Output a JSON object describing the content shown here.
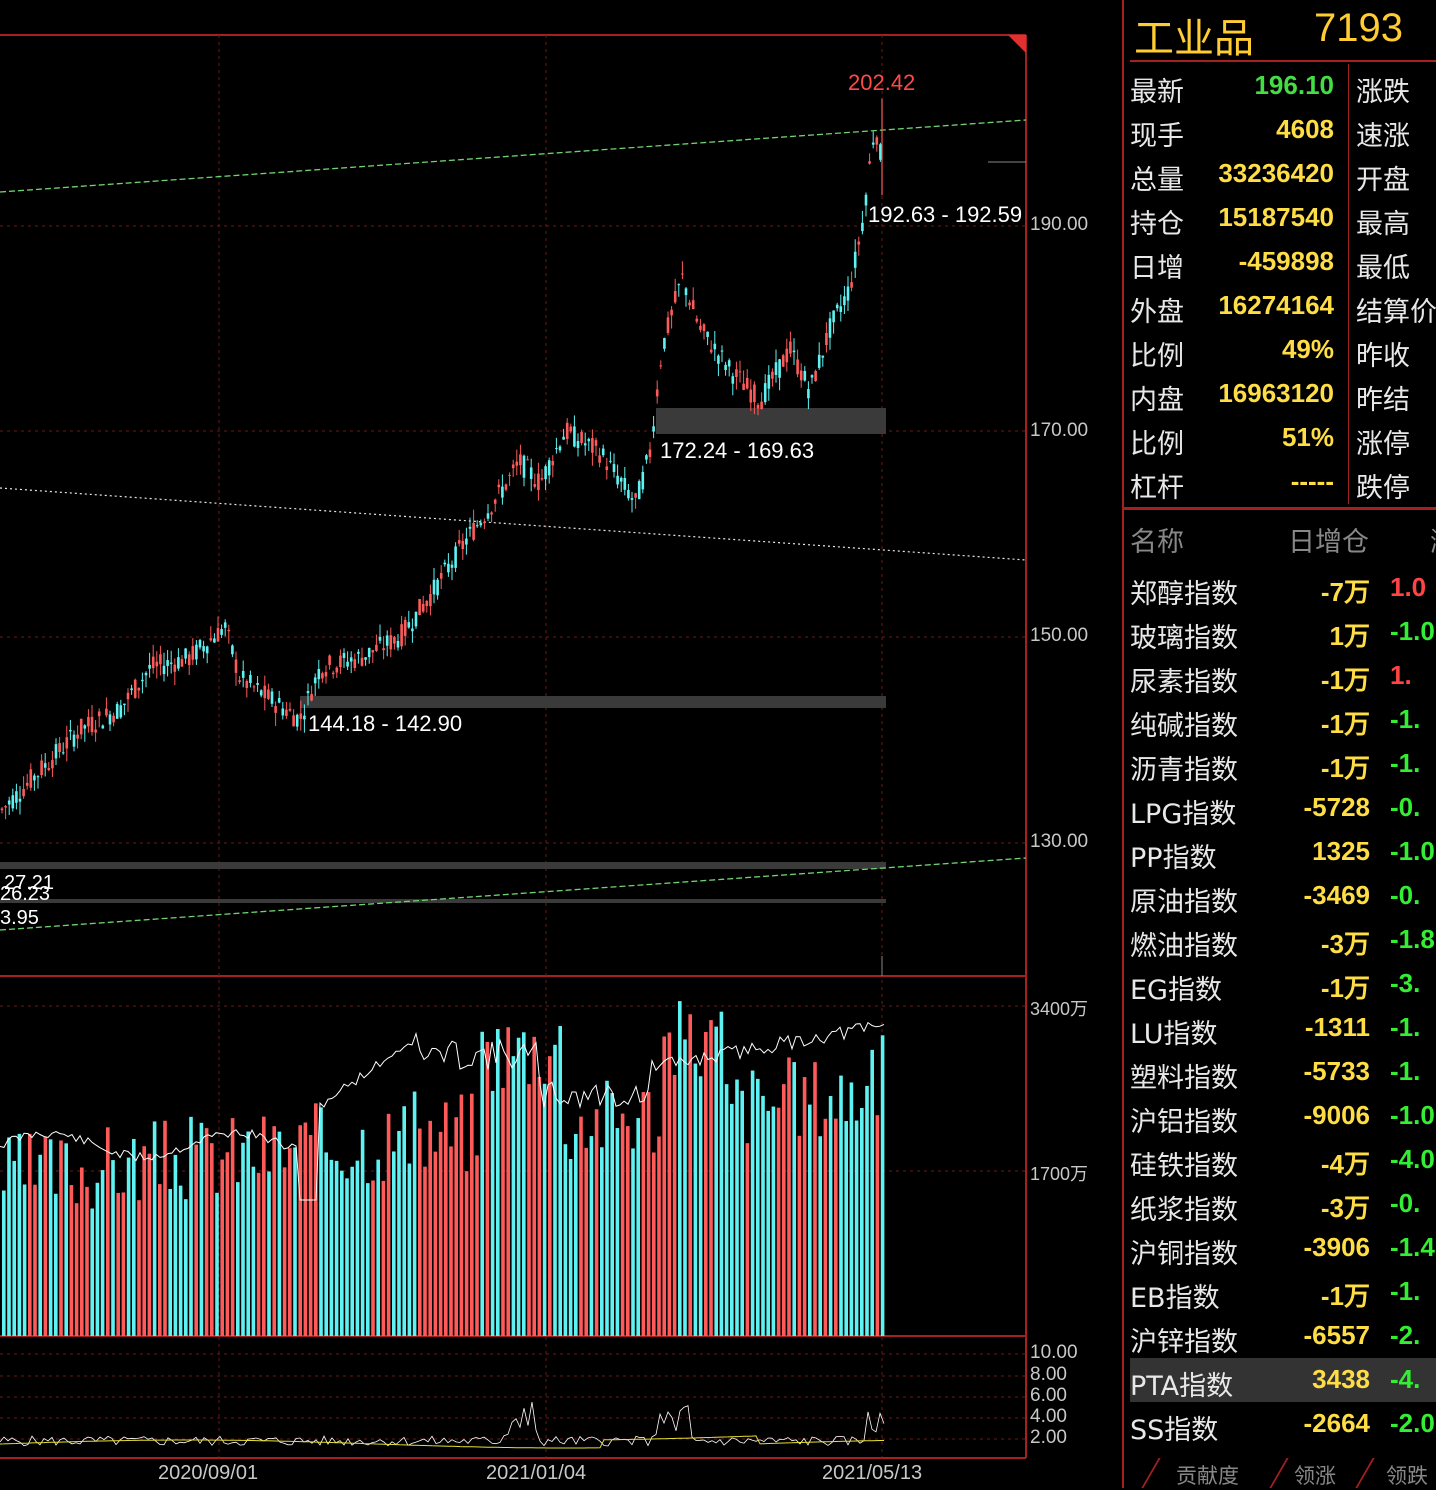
{
  "price_axis": [
    "190.00",
    "170.00",
    "150.00",
    "130.00"
  ],
  "volume_axis": [
    "3400万",
    "1700万"
  ],
  "indicator_axis": [
    "10.00",
    "8.00",
    "6.00",
    "4.00",
    "2.00"
  ],
  "date_axis": [
    "2020/09/01",
    "2021/01/04",
    "2021/05/13"
  ],
  "annotations": {
    "peak": "202.42",
    "zone_top": "192.63 - 192.59",
    "zone_mid": "172.24 - 169.63",
    "zone_low": "144.18 - 142.90",
    "zone_left_1": "27.21",
    "zone_left_2": "26.23",
    "zone_left_3": "3.95"
  },
  "colors": {
    "up": "#ff5a5a",
    "down": "#5ff2f2",
    "border": "#a52020",
    "quote_value": "#ffdd44",
    "positive_pct": "#ff4444",
    "negative_pct": "#33ee33"
  },
  "quote": {
    "name": "工业品",
    "code": "7193",
    "rows": [
      {
        "label": "最新",
        "value": "196.10",
        "label2": "涨跌",
        "tone": "green"
      },
      {
        "label": "现手",
        "value": "4608",
        "label2": "速涨",
        "tone": "yellow"
      },
      {
        "label": "总量",
        "value": "33236420",
        "label2": "开盘",
        "tone": "yellow"
      },
      {
        "label": "持仓",
        "value": "15187540",
        "label2": "最高",
        "tone": "yellow"
      },
      {
        "label": "日增",
        "value": "-459898",
        "label2": "最低",
        "tone": "yellow"
      },
      {
        "label": "外盘",
        "value": "16274164",
        "label2": "结算价",
        "tone": "yellow"
      },
      {
        "label": "比例",
        "value": "49%",
        "label2": "昨收",
        "tone": "yellow"
      },
      {
        "label": "内盘",
        "value": "16963120",
        "label2": "昨结",
        "tone": "yellow"
      },
      {
        "label": "比例",
        "value": "51%",
        "label2": "涨停",
        "tone": "yellow"
      },
      {
        "label": "杠杆",
        "value": "-----",
        "label2": "跌停",
        "tone": "yellow"
      }
    ]
  },
  "list": {
    "headers": [
      "名称",
      "日增仓",
      "涨"
    ],
    "rows": [
      {
        "name": "郑醇指数",
        "value": "-7万",
        "pct": "1.0",
        "tone": "red"
      },
      {
        "name": "玻璃指数",
        "value": "1万",
        "pct": "-1.0",
        "tone": "green"
      },
      {
        "name": "尿素指数",
        "value": "-1万",
        "pct": "1.",
        "tone": "red"
      },
      {
        "name": "纯碱指数",
        "value": "-1万",
        "pct": "-1.",
        "tone": "green"
      },
      {
        "name": "沥青指数",
        "value": "-1万",
        "pct": "-1.",
        "tone": "green"
      },
      {
        "name": "LPG指数",
        "value": "-5728",
        "pct": "-0.",
        "tone": "green"
      },
      {
        "name": "PP指数",
        "value": "1325",
        "pct": "-1.0",
        "tone": "green"
      },
      {
        "name": "原油指数",
        "value": "-3469",
        "pct": "-0.",
        "tone": "green"
      },
      {
        "name": "燃油指数",
        "value": "-3万",
        "pct": "-1.8",
        "tone": "green"
      },
      {
        "name": "EG指数",
        "value": "-1万",
        "pct": "-3.",
        "tone": "green"
      },
      {
        "name": "LU指数",
        "value": "-1311",
        "pct": "-1.",
        "tone": "green"
      },
      {
        "name": "塑料指数",
        "value": "-5733",
        "pct": "-1.",
        "tone": "green"
      },
      {
        "name": "沪铝指数",
        "value": "-9006",
        "pct": "-1.0",
        "tone": "green"
      },
      {
        "name": "硅铁指数",
        "value": "-4万",
        "pct": "-4.0",
        "tone": "green"
      },
      {
        "name": "纸浆指数",
        "value": "-3万",
        "pct": "-0.",
        "tone": "green"
      },
      {
        "name": "沪铜指数",
        "value": "-3906",
        "pct": "-1.4",
        "tone": "green"
      },
      {
        "name": "EB指数",
        "value": "-1万",
        "pct": "-1.",
        "tone": "green"
      },
      {
        "name": "沪锌指数",
        "value": "-6557",
        "pct": "-2.",
        "tone": "green"
      },
      {
        "name": "PTA指数",
        "value": "3438",
        "pct": "-4.",
        "tone": "green",
        "selected": true
      },
      {
        "name": "SS指数",
        "value": "-2664",
        "pct": "-2.0",
        "tone": "green"
      }
    ]
  },
  "tabs": [
    "贡献度",
    "领涨",
    "领跌"
  ]
}
